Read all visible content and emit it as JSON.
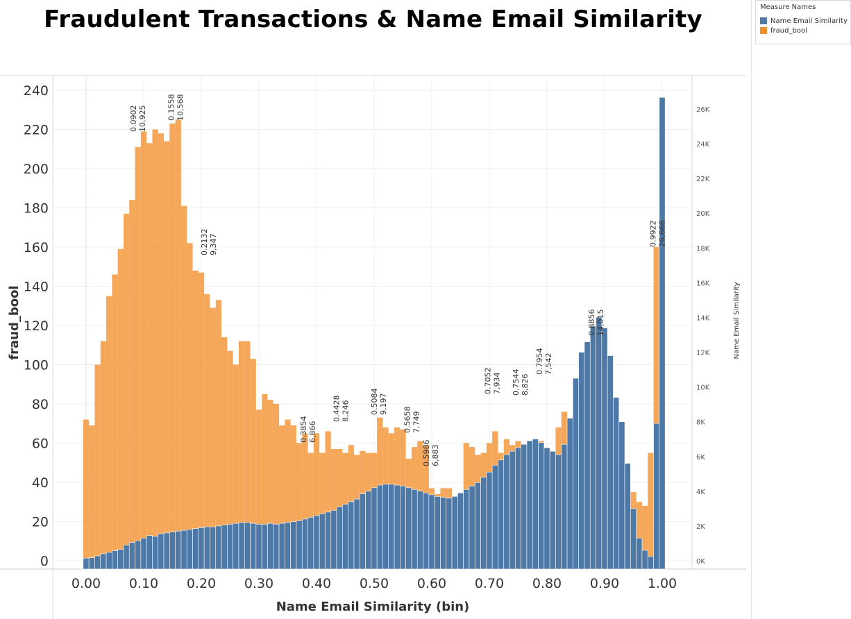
{
  "chart_data": {
    "type": "bar",
    "title": "Fraudulent Transactions & Name Email Similarity",
    "xlabel": "Name Email Similarity (bin)",
    "ylabel_left": "fraud_bool",
    "ylabel_right": "Name Email Similarity",
    "xlim": [
      0,
      1
    ],
    "ylim_left": [
      0,
      240
    ],
    "ylim_right": [
      0,
      27500
    ],
    "bin_width": 0.01,
    "x_ticks": [
      "0.00",
      "0.10",
      "0.20",
      "0.30",
      "0.40",
      "0.50",
      "0.60",
      "0.70",
      "0.80",
      "0.90",
      "1.00"
    ],
    "y_left_ticks": [
      "240",
      "220",
      "200",
      "180",
      "160",
      "140",
      "120",
      "100",
      "80",
      "60",
      "40",
      "20",
      "0"
    ],
    "y_right_ticks": [
      "26K",
      "24K",
      "22K",
      "20K",
      "18K",
      "16K",
      "14K",
      "12K",
      "10K",
      "8K",
      "6K",
      "4K",
      "2K",
      "0K"
    ],
    "grid": "both",
    "legend_placement": "top-right",
    "legend": {
      "title": "Measure Names",
      "items": [
        {
          "name": "Name Email Similarity",
          "color": "#4e79a7"
        },
        {
          "name": "fraud_bool",
          "color": "#f28e2b"
        }
      ]
    },
    "series": [
      {
        "name": "fraud_bool",
        "color": "#f28e2b",
        "axis": "left",
        "x": [
          0.0,
          0.01,
          0.02,
          0.03,
          0.04,
          0.05,
          0.06,
          0.07,
          0.08,
          0.09,
          0.1,
          0.11,
          0.12,
          0.13,
          0.14,
          0.15,
          0.16,
          0.17,
          0.18,
          0.19,
          0.2,
          0.21,
          0.22,
          0.23,
          0.24,
          0.25,
          0.26,
          0.27,
          0.28,
          0.29,
          0.3,
          0.31,
          0.32,
          0.33,
          0.34,
          0.35,
          0.36,
          0.37,
          0.38,
          0.39,
          0.4,
          0.41,
          0.42,
          0.43,
          0.44,
          0.45,
          0.46,
          0.47,
          0.48,
          0.49,
          0.5,
          0.51,
          0.52,
          0.53,
          0.54,
          0.55,
          0.56,
          0.57,
          0.58,
          0.59,
          0.6,
          0.61,
          0.62,
          0.63,
          0.64,
          0.65,
          0.66,
          0.67,
          0.68,
          0.69,
          0.7,
          0.71,
          0.72,
          0.73,
          0.74,
          0.75,
          0.76,
          0.77,
          0.78,
          0.79,
          0.8,
          0.81,
          0.82,
          0.83,
          0.84,
          0.85,
          0.86,
          0.87,
          0.88,
          0.89,
          0.9,
          0.91,
          0.92,
          0.93,
          0.94,
          0.95,
          0.96,
          0.97,
          0.98,
          0.99
        ],
        "values": [
          72,
          69,
          100,
          112,
          135,
          146,
          159,
          177,
          184,
          211,
          219,
          213,
          220,
          218,
          214,
          223,
          225,
          181,
          162,
          148,
          147,
          136,
          129,
          133,
          114,
          107,
          100,
          112,
          112,
          103,
          77,
          85,
          82,
          80,
          69,
          72,
          69,
          60,
          65,
          55,
          65,
          55,
          66,
          57,
          57,
          55,
          59,
          54,
          56,
          55,
          55,
          73,
          68,
          65,
          68,
          67,
          52,
          58,
          61,
          59,
          37,
          34,
          37,
          37,
          25,
          32,
          60,
          58,
          54,
          55,
          60,
          66,
          55,
          62,
          59,
          61,
          56,
          58,
          56,
          61,
          57,
          53,
          68,
          76,
          61,
          72,
          90,
          94,
          96,
          93,
          96,
          80,
          80,
          60,
          44,
          35,
          30,
          28,
          55,
          160
        ]
      },
      {
        "name": "Name Email Similarity",
        "color": "#4e79a7",
        "axis": "right",
        "x": [
          0.0,
          0.01,
          0.02,
          0.03,
          0.04,
          0.05,
          0.06,
          0.07,
          0.08,
          0.09,
          0.1,
          0.11,
          0.12,
          0.13,
          0.14,
          0.15,
          0.16,
          0.17,
          0.18,
          0.19,
          0.2,
          0.21,
          0.22,
          0.23,
          0.24,
          0.25,
          0.26,
          0.27,
          0.28,
          0.29,
          0.3,
          0.31,
          0.32,
          0.33,
          0.34,
          0.35,
          0.36,
          0.37,
          0.38,
          0.39,
          0.4,
          0.41,
          0.42,
          0.43,
          0.44,
          0.45,
          0.46,
          0.47,
          0.48,
          0.49,
          0.5,
          0.51,
          0.52,
          0.53,
          0.54,
          0.55,
          0.56,
          0.57,
          0.58,
          0.59,
          0.6,
          0.61,
          0.62,
          0.63,
          0.64,
          0.65,
          0.66,
          0.67,
          0.68,
          0.69,
          0.7,
          0.71,
          0.72,
          0.73,
          0.74,
          0.75,
          0.76,
          0.77,
          0.78,
          0.79,
          0.8,
          0.81,
          0.82,
          0.83,
          0.84,
          0.85,
          0.86,
          0.87,
          0.88,
          0.89,
          0.9,
          0.91,
          0.92,
          0.93,
          0.94,
          0.95,
          0.96,
          0.97,
          0.98,
          0.99,
          1.0
        ],
        "values": [
          150,
          170,
          280,
          400,
          480,
          580,
          650,
          900,
          1050,
          1150,
          1300,
          1450,
          1400,
          1550,
          1600,
          1650,
          1700,
          1750,
          1800,
          1850,
          1900,
          1950,
          1950,
          2000,
          2050,
          2100,
          2150,
          2200,
          2200,
          2150,
          2100,
          2100,
          2150,
          2100,
          2150,
          2200,
          2250,
          2300,
          2400,
          2500,
          2600,
          2700,
          2800,
          2900,
          3100,
          3250,
          3400,
          3550,
          3850,
          4000,
          4200,
          4350,
          4400,
          4400,
          4350,
          4300,
          4200,
          4100,
          4000,
          3900,
          3800,
          3700,
          3650,
          3600,
          3700,
          3900,
          4100,
          4300,
          4500,
          4800,
          5100,
          5500,
          5800,
          6100,
          6300,
          6500,
          6700,
          6900,
          7000,
          6800,
          6500,
          6300,
          6100,
          6700,
          8200,
          10500,
          12000,
          12600,
          13500,
          14015,
          13400,
          11800,
          9400,
          8000,
          5600,
          3000,
          1300,
          600,
          250,
          7900,
          26666
        ]
      }
    ],
    "annotations": [
      {
        "x": 0.0902,
        "lines": [
          "0.0902",
          "10,925"
        ]
      },
      {
        "x": 0.1558,
        "lines": [
          "0.1558",
          "10,568"
        ]
      },
      {
        "x": 0.2132,
        "lines": [
          "0.2132",
          "9,347"
        ]
      },
      {
        "x": 0.3854,
        "lines": [
          "0.3854",
          "6,866"
        ]
      },
      {
        "x": 0.4428,
        "lines": [
          "0.4428",
          "8,246"
        ]
      },
      {
        "x": 0.5084,
        "lines": [
          "0.5084",
          "9,197"
        ]
      },
      {
        "x": 0.5658,
        "lines": [
          "0.5658",
          "7,749"
        ]
      },
      {
        "x": 0.5986,
        "lines": [
          "0.5986",
          "6,883"
        ]
      },
      {
        "x": 0.7052,
        "lines": [
          "0.7052",
          "7,934"
        ]
      },
      {
        "x": 0.7544,
        "lines": [
          "0.7544",
          "8,826"
        ]
      },
      {
        "x": 0.7954,
        "lines": [
          "0.7954",
          "7,542"
        ]
      },
      {
        "x": 0.8856,
        "lines": [
          "0.8856",
          "14,015"
        ]
      },
      {
        "x": 0.9922,
        "lines": [
          "0.9922",
          "26,666"
        ]
      }
    ]
  }
}
